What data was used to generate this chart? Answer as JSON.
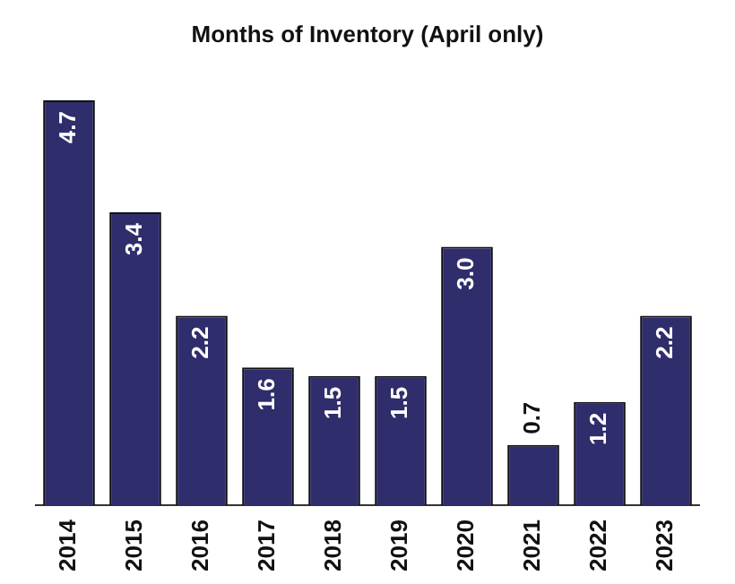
{
  "chart_data": {
    "type": "bar",
    "title": "Months of Inventory (April only)",
    "categories": [
      "2014",
      "2015",
      "2016",
      "2017",
      "2018",
      "2019",
      "2020",
      "2021",
      "2022",
      "2023"
    ],
    "values": [
      4.7,
      3.4,
      2.2,
      1.6,
      1.5,
      1.5,
      3.0,
      0.7,
      1.2,
      2.2
    ],
    "value_labels": [
      "4.7",
      "3.4",
      "2.2",
      "1.6",
      "1.5",
      "1.5",
      "3.0",
      "0.7",
      "1.2",
      "2.2"
    ],
    "color": "#2f2d6b",
    "grid": false,
    "legend": false
  }
}
